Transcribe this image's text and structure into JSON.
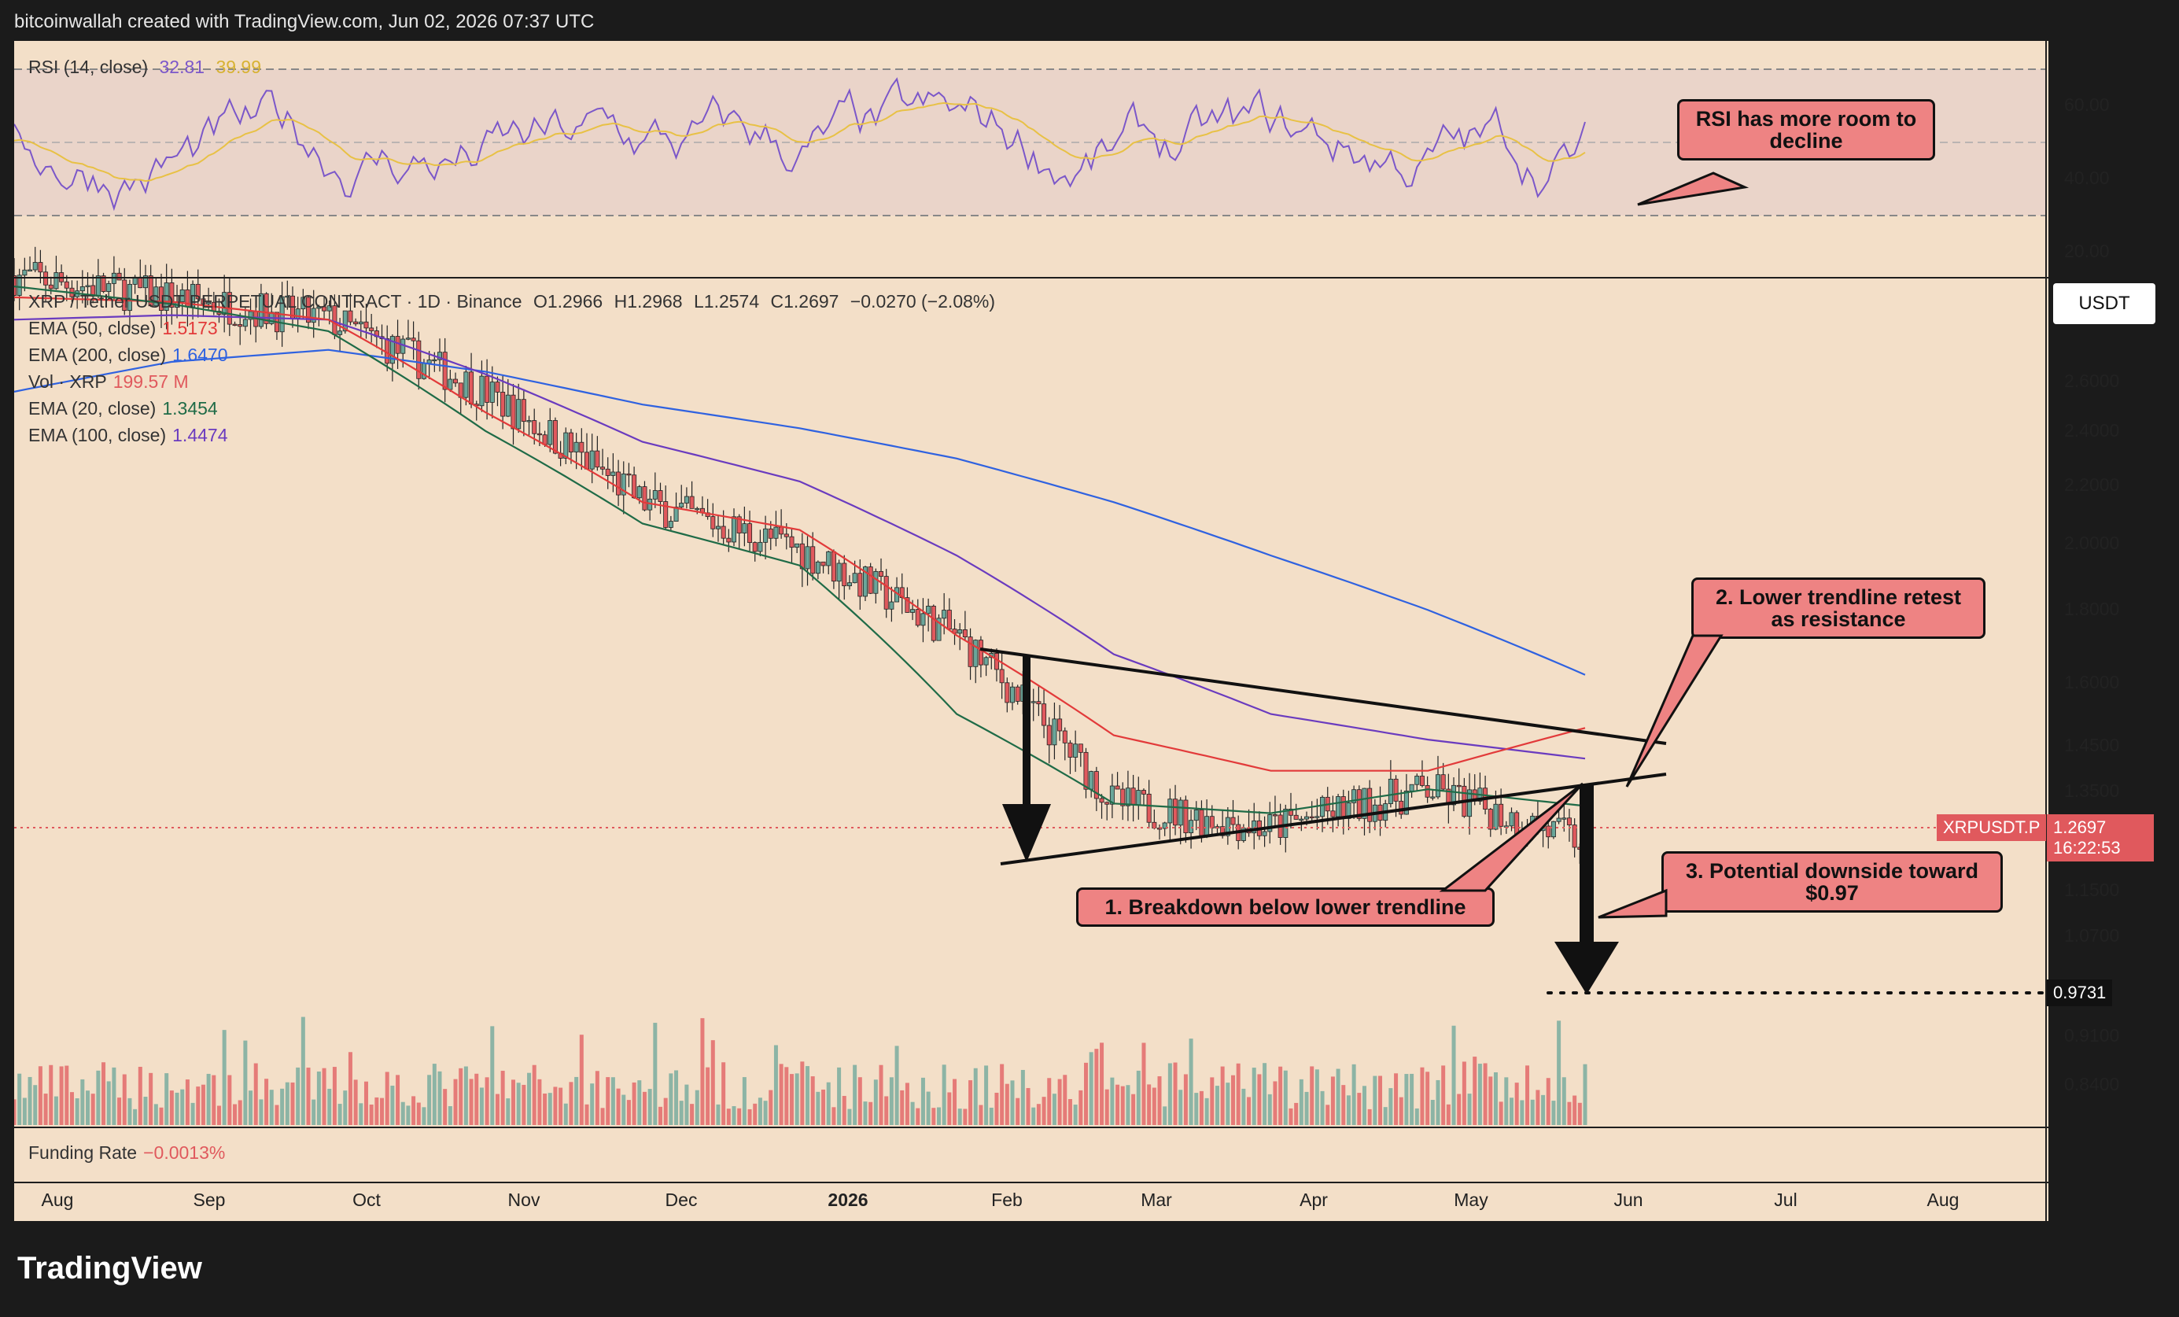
{
  "header": {
    "text": "bitcoinwallah created with TradingView.com, Jun 02, 2026 07:37 UTC"
  },
  "footer": {
    "logo": "TradingView"
  },
  "colors": {
    "background": "#f3dfc8",
    "ema50": "#e23a3a",
    "ema200": "#2f62e0",
    "ema20": "#1f6b47",
    "ema100": "#6a3bbf",
    "up": "#6aa69a",
    "down": "#e0595d",
    "rsi": "#7b57c9",
    "rsi_ma": "#e8c145",
    "callout": "#ee8383"
  },
  "rsi_panel": {
    "title": "RSI (14, close)",
    "value1": "32.81",
    "value2": "39.99",
    "levels": [
      "60.00",
      "40.00",
      "20.00"
    ]
  },
  "price_panel": {
    "symbol_line": "XRP / Tether USDT PERPETUAL CONTRACT · 1D · Binance",
    "ohlc": {
      "o": "O1.2966",
      "h": "H1.2968",
      "l": "L1.2574",
      "c": "C1.2697",
      "chg": "−0.0270 (−2.08%)"
    },
    "legend": [
      {
        "label": "EMA (50, close)",
        "value": "1.5173"
      },
      {
        "label": "EMA (200, close)",
        "value": "1.6470"
      },
      {
        "label": "Vol · XRP",
        "value": "199.57 M"
      },
      {
        "label": "EMA (20, close)",
        "value": "1.3454"
      },
      {
        "label": "EMA (100, close)",
        "value": "1.4474"
      }
    ],
    "currency_button": "USDT",
    "price_ticks": [
      "2.6000",
      "2.4000",
      "2.2000",
      "2.0000",
      "1.8000",
      "1.6000",
      "1.4500",
      "1.3500",
      "1.1500",
      "1.0700",
      "0.9100",
      "0.8400"
    ],
    "last_price_label": "XRPUSDT.P",
    "last_price": "1.2697",
    "countdown": "16:22:53",
    "target_label": "0.9731"
  },
  "funding": {
    "label": "Funding Rate",
    "value": "−0.0013%"
  },
  "x_axis": [
    "Aug",
    "Sep",
    "Oct",
    "Nov",
    "Dec",
    "2026",
    "Feb",
    "Mar",
    "Apr",
    "May",
    "Jun",
    "Jul",
    "Aug"
  ],
  "annotations": {
    "a1": "RSI has more room to decline",
    "a2": "2. Lower trendline retest as resistance",
    "a3": "1. Breakdown below lower trendline",
    "a4": "3. Potential downside toward $0.97"
  },
  "chart_data": {
    "type": "line",
    "x": [
      "Aug",
      "Sep",
      "Oct",
      "Nov",
      "Dec",
      "2026",
      "Feb",
      "Mar",
      "Apr",
      "May",
      "Jun"
    ],
    "series": [
      {
        "name": "XRP / Tether USDT PERPETUAL CONTRACT",
        "values": [
          3.05,
          2.95,
          2.85,
          2.55,
          2.15,
          2.0,
          1.75,
          1.35,
          1.3,
          1.38,
          1.27
        ]
      },
      {
        "name": "EMA (200, close)",
        "values": [
          2.55,
          2.67,
          2.72,
          2.63,
          2.5,
          2.41,
          2.3,
          2.15,
          1.98,
          1.82,
          1.647
        ]
      },
      {
        "name": "EMA (100, close)",
        "values": [
          2.85,
          2.87,
          2.85,
          2.62,
          2.36,
          2.22,
          1.98,
          1.7,
          1.55,
          1.49,
          1.447
        ]
      },
      {
        "name": "EMA (50, close)",
        "values": [
          2.95,
          2.93,
          2.85,
          2.47,
          2.15,
          2.06,
          1.75,
          1.5,
          1.42,
          1.42,
          1.517
        ]
      },
      {
        "name": "EMA (20, close)",
        "values": [
          3.0,
          2.92,
          2.8,
          2.4,
          2.08,
          1.95,
          1.55,
          1.35,
          1.33,
          1.38,
          1.345
        ]
      }
    ],
    "yscale": "log",
    "ylim": [
      0.8,
      2.9
    ],
    "last_close": 1.2697,
    "target": 0.9731
  }
}
